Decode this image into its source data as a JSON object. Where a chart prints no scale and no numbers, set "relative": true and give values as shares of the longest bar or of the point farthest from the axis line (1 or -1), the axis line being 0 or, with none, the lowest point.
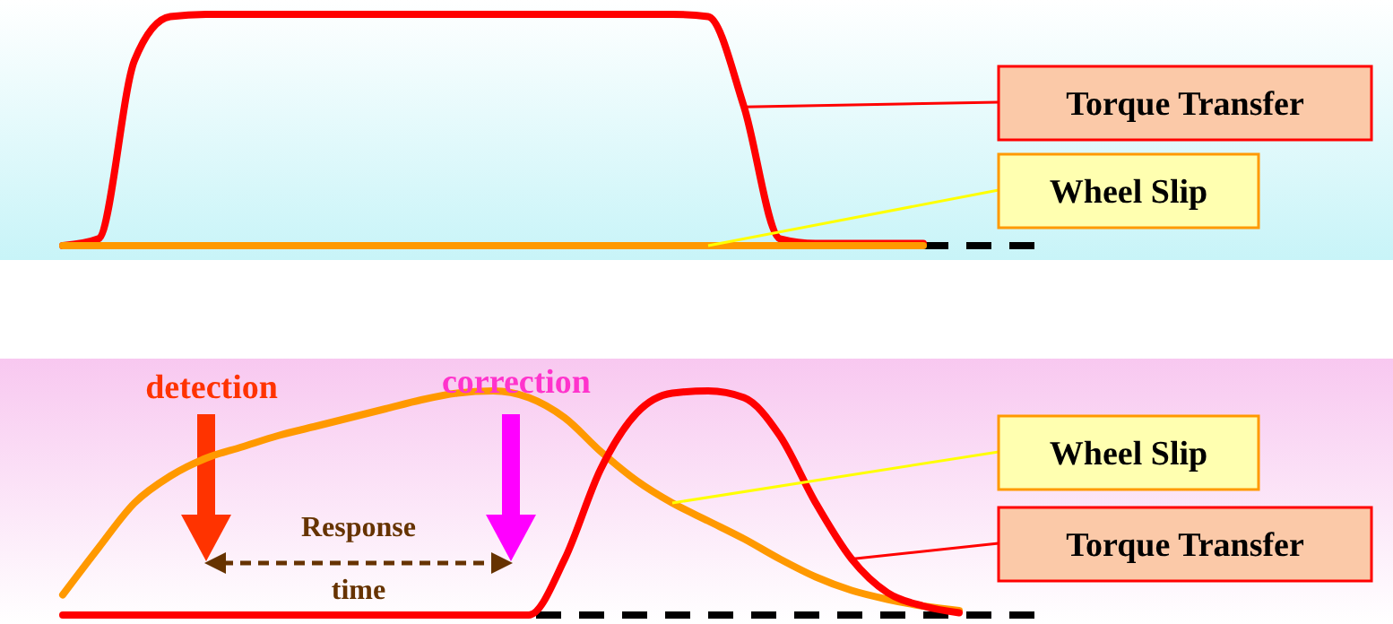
{
  "chart_data": [
    {
      "type": "line",
      "relative": true,
      "legend": "right",
      "categories": [
        null,
        null,
        null,
        null,
        null,
        null,
        null,
        null,
        null,
        null,
        null,
        null,
        null,
        null,
        null,
        null,
        null,
        null,
        null,
        null,
        null,
        null,
        null,
        null,
        null
      ],
      "series": [
        {
          "name": "Torque Transfer",
          "color": "#ff0000",
          "values": [
            0,
            0.03,
            0.8,
            0.99,
            1,
            1,
            1,
            1,
            1,
            1,
            1,
            1,
            1,
            1,
            1,
            1,
            1,
            1,
            0.99,
            0.6,
            0.03,
            0.01,
            0.01,
            0.01,
            0.01
          ]
        },
        {
          "name": "Wheel Slip",
          "color": "#ff9900",
          "values": [
            0,
            0,
            0,
            0,
            0,
            0,
            0,
            0,
            0,
            0,
            0,
            0,
            0,
            0,
            0,
            0,
            0,
            0,
            0,
            0,
            0,
            0,
            0,
            0,
            0
          ]
        }
      ]
    },
    {
      "type": "line",
      "relative": true,
      "legend": "right",
      "categories": [
        null,
        null,
        null,
        null,
        null,
        null,
        null,
        null,
        null,
        null,
        null,
        null,
        null,
        null,
        null,
        null,
        null,
        null,
        null,
        null,
        null,
        null,
        null,
        null,
        null,
        null
      ],
      "series": [
        {
          "name": "Wheel Slip",
          "color": "#ff9900",
          "values": [
            0.09,
            0.3,
            0.5,
            0.62,
            0.7,
            0.75,
            0.8,
            0.84,
            0.88,
            0.92,
            0.96,
            0.99,
            1,
            0.97,
            0.88,
            0.73,
            0.6,
            0.5,
            0.42,
            0.34,
            0.25,
            0.17,
            0.11,
            0.07,
            0.04,
            0.02
          ]
        },
        {
          "name": "Torque Transfer",
          "color": "#ff0000",
          "values": [
            0,
            0,
            0,
            0,
            0,
            0,
            0,
            0,
            0,
            0,
            0,
            0,
            0,
            0,
            0.25,
            0.65,
            0.9,
            0.99,
            1,
            0.97,
            0.8,
            0.5,
            0.25,
            0.1,
            0.04,
            0.01
          ]
        }
      ],
      "annotations": [
        "detection",
        "correction",
        "Response time"
      ]
    }
  ]
}
